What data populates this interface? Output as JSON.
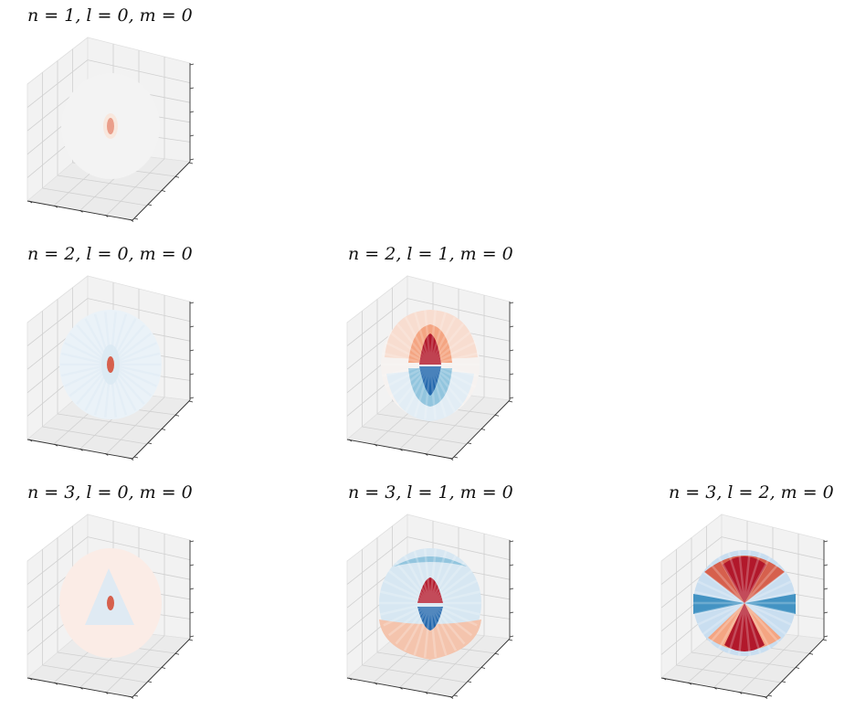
{
  "chart_data": [
    {
      "type": "surface3d",
      "title": "n = 1, l = 0, m = 0",
      "n": 1,
      "l": 0,
      "m": 0,
      "colormap": "RdBu_r",
      "shape": "sphere-faint",
      "grid": true
    },
    {
      "type": "surface3d",
      "title": "n = 2, l = 0, m = 0",
      "n": 2,
      "l": 0,
      "m": 0,
      "colormap": "RdBu_r",
      "shape": "sphere-faint-blue",
      "grid": true
    },
    {
      "type": "surface3d",
      "title": "n = 2, l = 1, m = 0",
      "n": 2,
      "l": 1,
      "m": 0,
      "colormap": "RdBu_r",
      "shape": "dipole",
      "grid": true
    },
    {
      "type": "surface3d",
      "title": "n = 3, l = 0, m = 0",
      "n": 3,
      "l": 0,
      "m": 0,
      "colormap": "RdBu_r",
      "shape": "sphere-shell",
      "grid": true
    },
    {
      "type": "surface3d",
      "title": "n = 3, l = 1, m = 0",
      "n": 3,
      "l": 1,
      "m": 0,
      "colormap": "RdBu_r",
      "shape": "dipole-shell",
      "grid": true
    },
    {
      "type": "surface3d",
      "title": "n = 3, l = 2, m = 0",
      "n": 3,
      "l": 2,
      "m": 0,
      "colormap": "RdBu_r",
      "shape": "quadrupole",
      "grid": true
    }
  ],
  "colors": {
    "red_dark": "#b2182b",
    "red_mid": "#d6604d",
    "red_light": "#f4a582",
    "red_pale": "#fddbc7",
    "neutral": "#f7f7f7",
    "blue_pale": "#d1e5f0",
    "blue_light": "#92c5de",
    "blue_mid": "#4393c3",
    "blue_dark": "#2166ac",
    "pane": "#f2f2f2",
    "grid": "#d0d0d0"
  }
}
